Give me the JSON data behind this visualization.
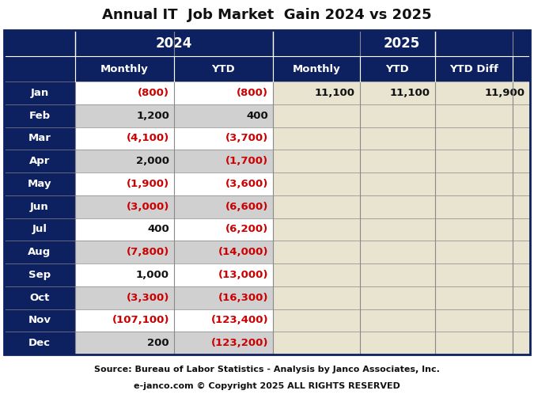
{
  "title": "Annual IT  Job Market  Gain 2024 vs 2025",
  "footer_line1": "Source: Bureau of Labor Statistics - Analysis by Janco Associates, Inc.",
  "footer_line2": "e-janco.com © Copyright 2025 ALL RIGHTS RESERVED",
  "header_bg": "#0d2060",
  "row_label_bg": "#0d2060",
  "row_even_bg": "#ffffff",
  "row_odd_bg": "#d0d0d0",
  "data_2025_bg": "#e8e4d0",
  "positive_color": "#111111",
  "negative_color": "#cc0000",
  "months": [
    "Jan",
    "Feb",
    "Mar",
    "Apr",
    "May",
    "Jun",
    "Jul",
    "Aug",
    "Sep",
    "Oct",
    "Nov",
    "Dec"
  ],
  "data_2024_monthly": [
    "(800)",
    "1,200",
    "(4,100)",
    "2,000",
    "(1,900)",
    "(3,000)",
    "400",
    "(7,800)",
    "1,000",
    "(3,300)",
    "(107,100)",
    "200"
  ],
  "data_2024_ytd": [
    "(800)",
    "400",
    "(3,700)",
    "(1,700)",
    "(3,600)",
    "(6,600)",
    "(6,200)",
    "(14,000)",
    "(13,000)",
    "(16,300)",
    "(123,400)",
    "(123,200)"
  ],
  "data_2025_monthly": [
    "11,100",
    "",
    "",
    "",
    "",
    "",
    "",
    "",
    "",
    "",
    "",
    ""
  ],
  "data_2025_ytd": [
    "11,100",
    "",
    "",
    "",
    "",
    "",
    "",
    "",
    "",
    "",
    "",
    ""
  ],
  "data_2025_ytddiff": [
    "11,900",
    "",
    "",
    "",
    "",
    "",
    "",
    "",
    "",
    "",
    "",
    ""
  ],
  "data_2024_monthly_neg": [
    true,
    false,
    true,
    false,
    true,
    true,
    false,
    true,
    false,
    true,
    true,
    false
  ],
  "data_2024_ytd_neg": [
    true,
    false,
    true,
    true,
    true,
    true,
    true,
    true,
    true,
    true,
    true,
    true
  ],
  "data_2025_monthly_neg": [
    false,
    false,
    false,
    false,
    false,
    false,
    false,
    false,
    false,
    false,
    false,
    false
  ],
  "data_2025_ytd_neg": [
    false,
    false,
    false,
    false,
    false,
    false,
    false,
    false,
    false,
    false,
    false,
    false
  ],
  "data_2025_ytddiff_neg": [
    false,
    false,
    false,
    false,
    false,
    false,
    false,
    false,
    false,
    false,
    false,
    false
  ]
}
